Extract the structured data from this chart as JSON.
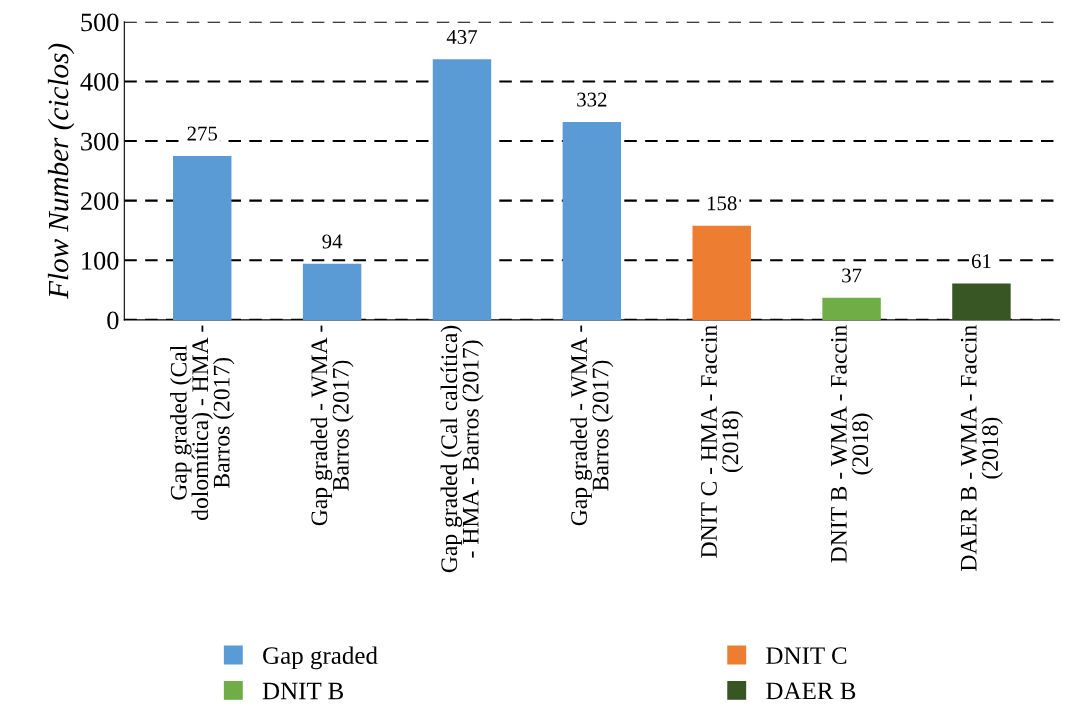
{
  "chart_data": {
    "type": "bar",
    "ylabel": "Flow Number (ciclos)",
    "categories": [
      "Gap graded (Cal\ndolomítica) - HMA -\nBarros (2017)",
      "Gap graded - WMA -\nBarros (2017)",
      "Gap graded (Cal calcítica)\n- HMA - Barros (2017)",
      "Gap graded - WMA -\nBarros (2017)",
      "DNIT C - HMA - Faccin\n(2018)",
      "DNIT B - WMA - Faccin\n(2018)",
      "DAER B - WMA - Faccin\n(2018)"
    ],
    "series": [
      {
        "name": "Gap graded",
        "color": "#5b9bd5",
        "values": [
          275,
          94,
          437,
          332,
          null,
          null,
          null
        ]
      },
      {
        "name": "DNIT C",
        "color": "#ed7d31",
        "values": [
          null,
          null,
          null,
          null,
          158,
          null,
          null
        ]
      },
      {
        "name": "DNIT B",
        "color": "#70ad47",
        "values": [
          null,
          null,
          null,
          null,
          null,
          37,
          null
        ]
      },
      {
        "name": "DAER B",
        "color": "#375623",
        "values": [
          null,
          null,
          null,
          null,
          null,
          null,
          61
        ]
      }
    ],
    "ylim": [
      0,
      500
    ],
    "yticks": [
      0,
      100,
      200,
      300,
      400,
      500
    ],
    "grid": "y",
    "legend": "bottom",
    "data_labels": true
  }
}
